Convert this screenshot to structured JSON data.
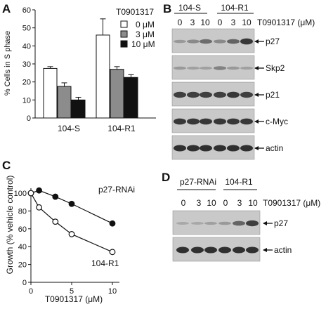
{
  "figure": {
    "panel_a": {
      "letter": "A",
      "legend_title": "T0901317",
      "legend_items": [
        "0 μM",
        "3 μM",
        "10 μM"
      ]
    },
    "panel_b": {
      "letter": "B",
      "group_labels": [
        "104-S",
        "104-R1"
      ],
      "dose_labels": [
        "0",
        "3",
        "10",
        "0",
        "3",
        "10"
      ],
      "treatment_label": "T0901317 (μM)",
      "blots": [
        "p27",
        "Skp2",
        "p21",
        "c-Myc",
        "actin"
      ]
    },
    "panel_c": {
      "letter": "C",
      "series_labels": [
        "p27-RNAi",
        "104-R1"
      ]
    },
    "panel_d": {
      "letter": "D",
      "group_labels": [
        "p27-RNAi",
        "104-R1"
      ],
      "dose_labels": [
        "0",
        "3",
        "10",
        "0",
        "3",
        "10"
      ],
      "treatment_label": "T0901317 (μM)",
      "blots": [
        "p27",
        "actin"
      ]
    }
  },
  "chart_data": [
    {
      "panel": "A",
      "type": "bar",
      "ylabel": "% Cells in S phase",
      "xlabel": "",
      "ylim": [
        0,
        60
      ],
      "yticks": [
        "0",
        "10",
        "20",
        "30",
        "40",
        "50",
        "60"
      ],
      "categories": [
        "104-S",
        "104-R1"
      ],
      "series": [
        {
          "name": "0 μM",
          "values": [
            27.5,
            46
          ],
          "errors": [
            1,
            9
          ],
          "color": "#ffffff"
        },
        {
          "name": "3 μM",
          "values": [
            17.5,
            27
          ],
          "errors": [
            2,
            1.5
          ],
          "color": "#8c8c8c"
        },
        {
          "name": "10 μM",
          "values": [
            10,
            22.5
          ],
          "errors": [
            1.5,
            1.5
          ],
          "color": "#111111"
        }
      ]
    },
    {
      "panel": "C",
      "type": "line",
      "ylabel": "Growth (% vehicle control)",
      "xlabel": "T0901317 (μM)",
      "xlim": [
        0,
        10
      ],
      "ylim": [
        0,
        100
      ],
      "xticks": [
        "0",
        "5",
        "10"
      ],
      "yticks": [
        "0",
        "20",
        "40",
        "60",
        "80",
        "100"
      ],
      "series": [
        {
          "name": "p27-RNAi",
          "marker": "filled",
          "x": [
            0,
            1,
            3,
            5,
            10
          ],
          "y": [
            100,
            103,
            96,
            88,
            66
          ]
        },
        {
          "name": "104-R1",
          "marker": "open",
          "x": [
            0,
            1,
            3,
            5,
            10
          ],
          "y": [
            100,
            84,
            68,
            54,
            34
          ]
        }
      ]
    }
  ]
}
